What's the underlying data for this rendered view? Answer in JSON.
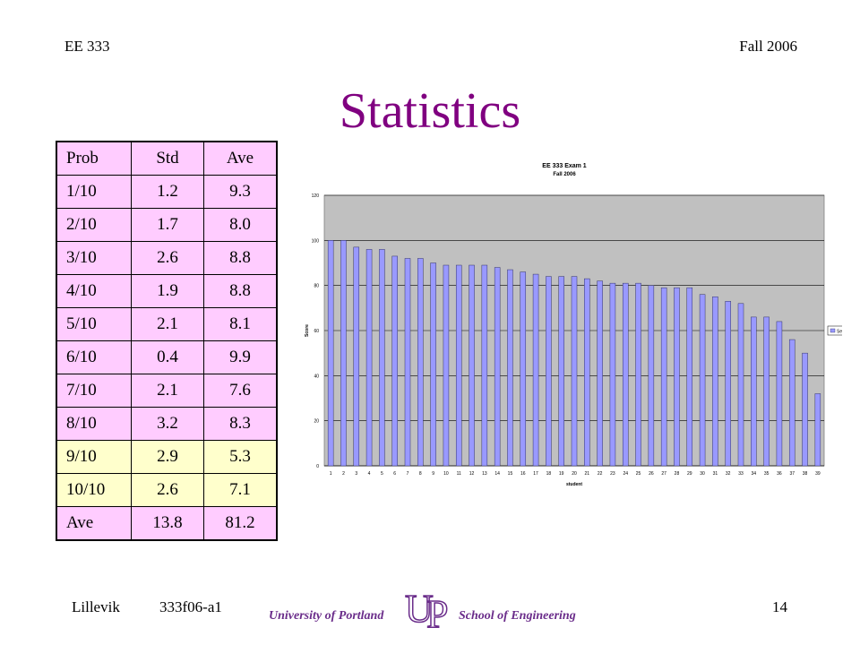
{
  "header": {
    "course": "EE 333",
    "term": "Fall 2006"
  },
  "title": "Statistics",
  "table": {
    "header": [
      "Prob",
      "Std",
      "Ave"
    ],
    "rows": [
      [
        "1/10",
        "1.2",
        "9.3"
      ],
      [
        "2/10",
        "1.7",
        "8.0"
      ],
      [
        "3/10",
        "2.6",
        "8.8"
      ],
      [
        "4/10",
        "1.9",
        "8.8"
      ],
      [
        "5/10",
        "2.1",
        "8.1"
      ],
      [
        "6/10",
        "0.4",
        "9.9"
      ],
      [
        "7/10",
        "2.1",
        "7.6"
      ],
      [
        "8/10",
        "3.2",
        "8.3"
      ],
      [
        "9/10",
        "2.9",
        "5.3"
      ],
      [
        "10/10",
        "2.6",
        "7.1"
      ]
    ],
    "total": [
      "Ave",
      "13.8",
      "81.2"
    ],
    "colors": {
      "normal": "#ffccff",
      "highlight": "#ffffcc"
    }
  },
  "chart_data": {
    "type": "bar",
    "title": "EE 333 Exam 1",
    "subtitle": "Fall 2006",
    "xlabel": "student",
    "ylabel": "Score",
    "ylim": [
      0,
      120
    ],
    "yticks": [
      0,
      20,
      40,
      60,
      80,
      100,
      120
    ],
    "grid": true,
    "legend_position": "right",
    "categories": [
      "1",
      "2",
      "3",
      "4",
      "5",
      "6",
      "7",
      "8",
      "9",
      "10",
      "11",
      "12",
      "13",
      "14",
      "15",
      "16",
      "17",
      "18",
      "19",
      "20",
      "21",
      "22",
      "23",
      "24",
      "25",
      "26",
      "27",
      "28",
      "29",
      "30",
      "31",
      "32",
      "33",
      "34",
      "35",
      "36",
      "37",
      "38",
      "39"
    ],
    "series": [
      {
        "name": "Series1",
        "values": [
          100,
          100,
          97,
          96,
          96,
          93,
          92,
          92,
          90,
          89,
          89,
          89,
          89,
          88,
          87,
          86,
          85,
          84,
          84,
          84,
          83,
          82,
          81,
          81,
          81,
          80,
          79,
          79,
          79,
          76,
          75,
          73,
          72,
          66,
          66,
          64,
          56,
          50,
          32
        ]
      }
    ],
    "colors": {
      "bar": "#9999ff",
      "bar_edge": "#333366",
      "plot_bg": "#c0c0c0"
    }
  },
  "footer": {
    "author": "Lillevik",
    "code": "333f06-a1",
    "page": "14",
    "university": "University of Portland",
    "school": "School of Engineering",
    "logo_letters": [
      "U",
      "P"
    ]
  }
}
